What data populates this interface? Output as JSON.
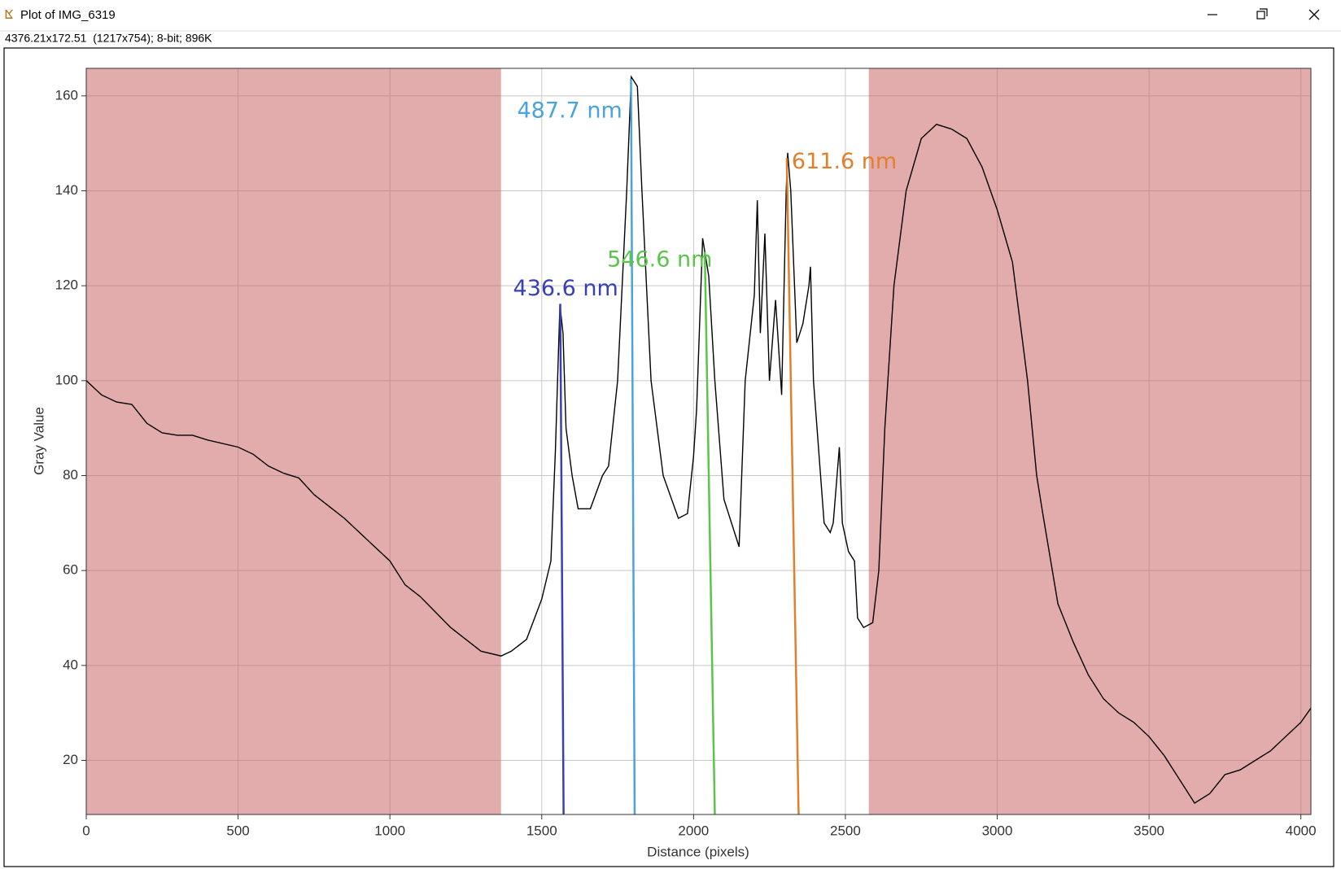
{
  "window": {
    "title": "Plot of IMG_6319",
    "info": "4376.21x172.51  (1217x754); 8-bit; 896K"
  },
  "chart_data": {
    "type": "line",
    "xlabel": "Distance (pixels)",
    "ylabel": "Gray Value",
    "xlim": [
      0,
      4033
    ],
    "ylim": [
      8.6,
      165.8
    ],
    "xticks": [
      0,
      500,
      1000,
      1500,
      2000,
      2500,
      3000,
      3500,
      4000
    ],
    "yticks": [
      20,
      40,
      60,
      80,
      100,
      120,
      140,
      160
    ],
    "grid": true,
    "shaded_regions": [
      {
        "x": [
          0,
          1366
        ],
        "color": "#c85a5a"
      },
      {
        "x": [
          2577,
          4033
        ],
        "color": "#c85a5a"
      }
    ],
    "series": [
      {
        "color": "#000000",
        "x": [
          0,
          50,
          100,
          150,
          200,
          250,
          300,
          350,
          400,
          500,
          550,
          600,
          650,
          700,
          750,
          850,
          950,
          1000,
          1050,
          1100,
          1200,
          1300,
          1366,
          1400,
          1450,
          1500,
          1530,
          1545,
          1560,
          1570,
          1580,
          1600,
          1620,
          1660,
          1700,
          1720,
          1750,
          1780,
          1795,
          1815,
          1830,
          1860,
          1900,
          1950,
          1980,
          2000,
          2010,
          2030,
          2050,
          2070,
          2100,
          2150,
          2170,
          2200,
          2210,
          2220,
          2235,
          2250,
          2270,
          2290,
          2305,
          2310,
          2320,
          2340,
          2360,
          2380,
          2385,
          2395,
          2430,
          2450,
          2460,
          2480,
          2490,
          2510,
          2530,
          2540,
          2560,
          2590,
          2610,
          2630,
          2660,
          2700,
          2750,
          2800,
          2850,
          2900,
          2950,
          3000,
          3050,
          3080,
          3100,
          3130,
          3150,
          3200,
          3250,
          3300,
          3350,
          3400,
          3450,
          3500,
          3550,
          3600,
          3650,
          3700,
          3750,
          3800,
          3850,
          3900,
          3950,
          4000,
          4033
        ],
        "values": [
          100,
          97,
          95.5,
          95,
          91,
          89,
          88.5,
          88.5,
          87.5,
          86,
          84.5,
          82,
          80.5,
          79.5,
          76,
          71,
          65,
          62,
          57,
          54.5,
          48,
          43,
          42,
          43,
          45.5,
          54,
          62,
          85,
          116,
          110,
          90,
          80,
          73,
          73,
          80,
          82,
          100,
          140,
          164,
          162,
          140,
          100,
          80,
          71,
          72,
          84,
          94,
          130,
          122,
          100,
          75,
          65,
          100,
          118,
          138,
          110,
          131,
          100,
          117,
          97,
          140,
          148,
          140,
          108,
          112,
          120,
          124,
          100,
          70,
          68,
          70,
          86,
          70,
          64,
          62,
          50,
          48,
          49,
          60,
          90,
          120,
          140,
          151,
          154,
          153,
          151,
          145,
          136,
          125,
          110,
          100,
          80,
          72,
          53,
          45,
          38,
          33,
          30,
          28,
          25,
          21,
          16,
          11,
          13,
          17,
          18,
          20,
          22,
          25,
          28,
          31
        ]
      }
    ],
    "markers": [
      {
        "label": "436.6 nm",
        "color": "#3a40b4",
        "x": [
          1561,
          1572
        ],
        "y": [
          116.2,
          8.6
        ]
      },
      {
        "label": "487.7 nm",
        "color": "#4aa3dc",
        "x": [
          1794,
          1806
        ],
        "y": [
          163.6,
          8.6
        ]
      },
      {
        "label": "546.6 nm",
        "color": "#5cc44c",
        "x": [
          2037,
          2070
        ],
        "y": [
          127.1,
          8.6
        ]
      },
      {
        "label": "611.6 nm",
        "color": "#e0802c",
        "x": [
          2307,
          2346
        ],
        "y": [
          146.9,
          8.6
        ]
      }
    ]
  }
}
